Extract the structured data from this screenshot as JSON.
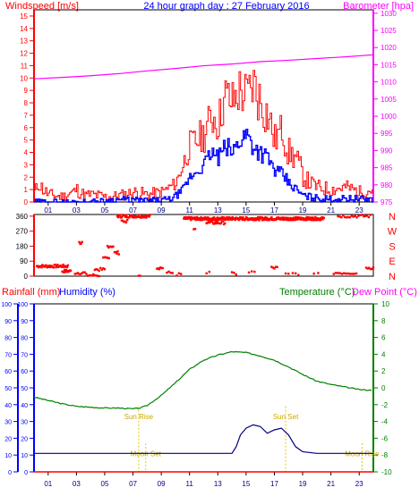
{
  "chart_data": [
    {
      "type": "line",
      "title": "24 hour graph day : 27 February 2016",
      "ylabel_left": "Windspeed [m/s]",
      "ylabel_right": "Barometer [hpa]",
      "x_ticks": [
        "01",
        "03",
        "05",
        "07",
        "09",
        "11",
        "13",
        "15",
        "17",
        "19",
        "21",
        "23"
      ],
      "x_range_hours": [
        0,
        24
      ],
      "y_left_ticks": [
        0,
        1,
        2,
        3,
        4,
        5,
        6,
        7,
        8,
        9,
        10,
        11,
        12,
        13,
        14,
        15
      ],
      "y_left_range": [
        0,
        15.5
      ],
      "y_right_ticks": [
        975,
        980,
        985,
        990,
        995,
        1000,
        1005,
        1010,
        1015,
        1020,
        1025,
        1030
      ],
      "y_right_range": [
        975,
        1031
      ],
      "grid": false,
      "colors": {
        "gust": "#ff0000",
        "average": "#0000ff",
        "barometer": "#ff00ff",
        "title": "#0000ff",
        "axis_left": "#ff0000",
        "axis_right": "#ff00ff"
      },
      "series": [
        {
          "name": "Barometer [hpa]",
          "unit": "hpa",
          "x": [
            0,
            2,
            4,
            6,
            8,
            10,
            12,
            14,
            16,
            18,
            20,
            22,
            24
          ],
          "values": [
            1010.9,
            1011.3,
            1011.8,
            1012.4,
            1013.2,
            1013.9,
            1014.7,
            1015.2,
            1015.9,
            1016.3,
            1016.8,
            1017.3,
            1017.9
          ]
        }
      ],
      "wind_gust_points": [
        [
          0,
          0.8
        ],
        [
          0.3,
          1.5
        ],
        [
          0.6,
          1
        ],
        [
          1,
          0.6
        ],
        [
          2,
          0.4
        ],
        [
          3,
          1
        ],
        [
          3.5,
          0.5
        ],
        [
          4,
          0.6
        ],
        [
          5,
          0.4
        ],
        [
          6,
          0.5
        ],
        [
          7,
          0.8
        ],
        [
          8,
          0.6
        ],
        [
          9,
          0.8
        ],
        [
          10,
          1.5
        ],
        [
          10.5,
          3
        ],
        [
          11,
          4.5
        ],
        [
          11.5,
          5
        ],
        [
          12,
          5.5
        ],
        [
          12.5,
          7
        ],
        [
          13,
          6.5
        ],
        [
          13.5,
          8.5
        ],
        [
          14,
          8
        ],
        [
          14.5,
          9
        ],
        [
          15,
          8.5
        ],
        [
          15.5,
          9.5
        ],
        [
          16,
          8
        ],
        [
          16.5,
          7
        ],
        [
          17,
          5
        ],
        [
          17.5,
          6
        ],
        [
          18,
          4
        ],
        [
          18.5,
          3.5
        ],
        [
          19,
          2
        ],
        [
          19.5,
          1.5
        ],
        [
          20,
          1.2
        ],
        [
          21,
          1
        ],
        [
          22,
          1.2
        ],
        [
          23,
          0.8
        ],
        [
          24,
          1
        ]
      ],
      "wind_avg_points": [
        [
          0,
          0
        ],
        [
          2,
          0
        ],
        [
          4,
          0
        ],
        [
          6,
          0.2
        ],
        [
          8,
          0.1
        ],
        [
          9.5,
          0.2
        ],
        [
          10,
          0.5
        ],
        [
          10.5,
          1
        ],
        [
          11,
          2
        ],
        [
          11.5,
          2.5
        ],
        [
          12,
          3
        ],
        [
          12.5,
          4
        ],
        [
          13,
          3.5
        ],
        [
          13.5,
          4.5
        ],
        [
          14,
          4
        ],
        [
          14.5,
          5
        ],
        [
          15,
          5.5
        ],
        [
          15.5,
          4.5
        ],
        [
          16,
          4
        ],
        [
          16.5,
          3.5
        ],
        [
          17,
          2.5
        ],
        [
          17.5,
          2.2
        ],
        [
          18,
          1.5
        ],
        [
          18.5,
          1
        ],
        [
          19,
          0.5
        ],
        [
          20,
          0.3
        ],
        [
          21,
          0.2
        ],
        [
          22,
          0.3
        ],
        [
          24,
          0.2
        ]
      ]
    },
    {
      "type": "scatter",
      "title": "",
      "ylabel": "Wind direction",
      "y_ticks": [
        0,
        90,
        180,
        270,
        360
      ],
      "y_range": [
        0,
        370
      ],
      "compass_labels": [
        "N",
        "W",
        "S",
        "E",
        "N"
      ],
      "color": "#ff0000",
      "point_groups": [
        {
          "x": [
            0.2,
            2.4
          ],
          "y": 60,
          "n": 40
        },
        {
          "x": [
            2.0,
            2.6
          ],
          "y": 30,
          "n": 12
        },
        {
          "x": [
            2.9,
            3.6
          ],
          "y": 20,
          "n": 8
        },
        {
          "x": [
            3.7,
            4.6
          ],
          "y": 5,
          "n": 10
        },
        {
          "x": [
            3.2,
            3.4
          ],
          "y": 200,
          "n": 4
        },
        {
          "x": [
            4.9,
            5.3
          ],
          "y": 105,
          "n": 6
        },
        {
          "x": [
            5.2,
            5.6
          ],
          "y": 180,
          "n": 6
        },
        {
          "x": [
            5.7,
            6.0
          ],
          "y": 140,
          "n": 5
        },
        {
          "x": [
            4.3,
            5.0
          ],
          "y": 40,
          "n": 8
        },
        {
          "x": [
            5.9,
            8.2
          ],
          "y": 360,
          "n": 45
        },
        {
          "x": [
            6.2,
            6.6
          ],
          "y": 330,
          "n": 6
        },
        {
          "x": [
            7.4,
            7.5
          ],
          "y": 10,
          "n": 2
        },
        {
          "x": [
            8.7,
            9.1
          ],
          "y": 50,
          "n": 6
        },
        {
          "x": [
            9.4,
            9.8
          ],
          "y": 20,
          "n": 4
        },
        {
          "x": [
            10.1,
            10.4
          ],
          "y": 10,
          "n": 3
        },
        {
          "x": [
            10.6,
            20.5
          ],
          "y": 345,
          "n": 320
        },
        {
          "x": [
            11.3,
            11.4
          ],
          "y": 290,
          "n": 2
        },
        {
          "x": [
            12.2,
            13.5
          ],
          "y": 320,
          "n": 20
        },
        {
          "x": [
            12.2,
            12.4
          ],
          "y": 20,
          "n": 2
        },
        {
          "x": [
            14.0,
            14.3
          ],
          "y": 15,
          "n": 3
        },
        {
          "x": [
            15.2,
            15.6
          ],
          "y": 25,
          "n": 3
        },
        {
          "x": [
            16.8,
            17.2
          ],
          "y": 50,
          "n": 5
        },
        {
          "x": [
            17.8,
            18.0
          ],
          "y": 10,
          "n": 2
        },
        {
          "x": [
            18.3,
            18.7
          ],
          "y": 15,
          "n": 3
        },
        {
          "x": [
            19.8,
            20.1
          ],
          "y": 10,
          "n": 2
        },
        {
          "x": [
            21.2,
            22.8
          ],
          "y": 20,
          "n": 12
        },
        {
          "x": [
            21.5,
            23.8
          ],
          "y": 360,
          "n": 20
        },
        {
          "x": [
            23.5,
            24.0
          ],
          "y": 50,
          "n": 6
        }
      ]
    },
    {
      "type": "line",
      "title": "",
      "ylabel_left_1": "Rainfall (mm)",
      "ylabel_left_2": "Humidity (%)",
      "ylabel_right_1": "Temperature (°C)",
      "ylabel_right_2": "Dew Point (°C)",
      "x_ticks": [
        "01",
        "03",
        "05",
        "07",
        "09",
        "11",
        "13",
        "15",
        "17",
        "19",
        "21",
        "23"
      ],
      "x_range_hours": [
        0,
        24
      ],
      "y_left_ticks": [
        0,
        10,
        20,
        30,
        40,
        50,
        60,
        70,
        80,
        90,
        100
      ],
      "y_left_range": [
        0,
        100
      ],
      "y_right_ticks": [
        10,
        8,
        6,
        4,
        2,
        0,
        -2,
        -4,
        -6,
        -8,
        -10
      ],
      "y_right_range": [
        -10,
        10
      ],
      "colors": {
        "temperature": "#008000",
        "humidity": "#000080",
        "rainfall": "#ff0000",
        "sun_moon": "#e6c700",
        "left_axis": "#0000ff",
        "right_axis": "#008000"
      },
      "series": [
        {
          "name": "Temperature (°C)",
          "unit": "°C",
          "x": [
            0,
            1,
            2,
            3,
            4,
            5,
            6,
            7,
            7.5,
            8,
            9,
            10,
            11,
            12,
            13,
            14,
            15,
            16,
            17,
            18,
            19,
            20,
            21,
            22,
            23,
            24
          ],
          "values": [
            -1.1,
            -1.5,
            -1.9,
            -2.2,
            -2.3,
            -2.4,
            -2.4,
            -2.5,
            -2.4,
            -2.1,
            -0.9,
            0.6,
            2.2,
            3.3,
            3.9,
            4.3,
            4.2,
            3.8,
            3.3,
            2.5,
            1.6,
            0.8,
            0.4,
            0.1,
            -0.2,
            -0.3
          ]
        },
        {
          "name": "Humidity (%)",
          "unit": "%",
          "x": [
            0,
            2,
            4,
            6,
            8,
            10,
            12,
            14,
            14.3,
            14.6,
            15,
            15.5,
            16,
            16.5,
            17,
            17.5,
            18,
            18.5,
            19,
            20,
            22,
            24
          ],
          "values": [
            11,
            11,
            11,
            11,
            11,
            11,
            11,
            11,
            15,
            22,
            26,
            28,
            27,
            23,
            25,
            26,
            22,
            15,
            12,
            11,
            11,
            11
          ]
        },
        {
          "name": "Rainfall (mm)",
          "unit": "mm",
          "x": [
            0,
            24
          ],
          "values": [
            0,
            0
          ]
        }
      ],
      "annotations": [
        {
          "text": "Sun Rise",
          "hour": 7.4,
          "level": 33
        },
        {
          "text": "Moon Set",
          "hour": 7.9,
          "level": 11
        },
        {
          "text": "Sun Set",
          "hour": 17.8,
          "level": 33
        },
        {
          "text": "Moon Rise",
          "hour": 23.2,
          "level": 11
        }
      ]
    }
  ]
}
